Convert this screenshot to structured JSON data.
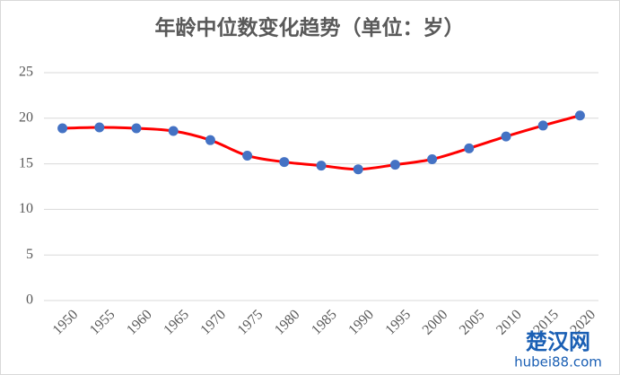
{
  "chart_data": {
    "type": "line",
    "title": "年龄中位数变化趋势（单位：岁）",
    "categories": [
      "1950",
      "1955",
      "1960",
      "1965",
      "1970",
      "1975",
      "1980",
      "1985",
      "1990",
      "1995",
      "2000",
      "2005",
      "2010",
      "2015",
      "2020"
    ],
    "values": [
      18.9,
      19.0,
      18.9,
      18.6,
      17.6,
      15.9,
      15.2,
      14.8,
      14.4,
      14.9,
      15.5,
      16.7,
      18.0,
      19.2,
      20.3
    ],
    "color": "#ff0000",
    "marker_color": "#4472c4",
    "ylim": [
      0,
      25
    ],
    "yticks": [
      0,
      5,
      10,
      15,
      20,
      25
    ],
    "grid": true,
    "watermark": {
      "name": "楚汉网",
      "url": "hubei88.com"
    }
  }
}
